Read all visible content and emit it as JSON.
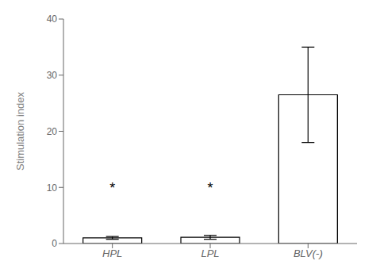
{
  "chart_data": {
    "type": "bar",
    "categories": [
      "HPL",
      "LPL",
      "BLV(-)"
    ],
    "values": [
      1.0,
      1.1,
      26.5
    ],
    "errors": [
      0.25,
      0.35,
      8.5
    ],
    "ylabel": "Stimulation index",
    "ylim": [
      0,
      40
    ],
    "yticks": [
      0,
      10,
      20,
      30,
      40
    ],
    "color": "white",
    "annotations": [
      {
        "text": "*",
        "category": "HPL",
        "y": 10
      },
      {
        "text": "*",
        "category": "LPL",
        "y": 10
      }
    ]
  }
}
